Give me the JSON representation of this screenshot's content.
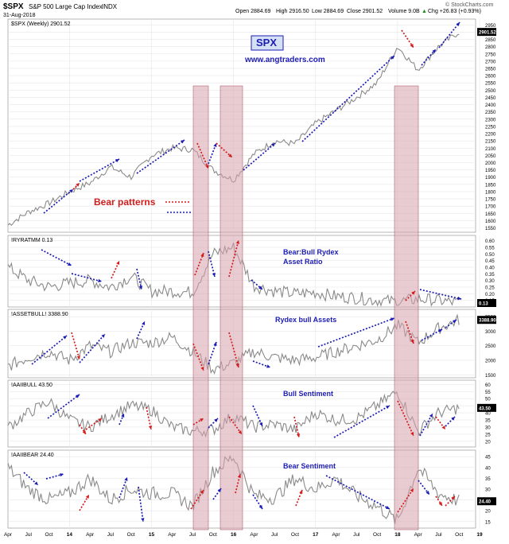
{
  "header": {
    "symbol": "$SPX",
    "name": "S&P 500 Large Cap Index",
    "exchange": "INDX",
    "date": "31-Aug-2018",
    "open": "Open 2884.69",
    "high": "High 2916.50",
    "low": "Low 2884.69",
    "close": "Close 2901.52",
    "volume": "Volume 9.0B",
    "chg": "Chg +26.83 (+0.93%)",
    "chg_arrow": "▲",
    "credit": "© StockCharts.com"
  },
  "panels": [
    {
      "legend": "$SPX (Weekly) 2901.52",
      "annotation": "SPX",
      "annotation2": "www.angtraders.com",
      "last": "2901.52",
      "ticks": [
        "2950",
        "2900",
        "2850",
        "2800",
        "2750",
        "2700",
        "2650",
        "2600",
        "2550",
        "2500",
        "2450",
        "2400",
        "2350",
        "2300",
        "2250",
        "2200",
        "2150",
        "2100",
        "2050",
        "2000",
        "1950",
        "1900",
        "1850",
        "1800",
        "1750",
        "1700",
        "1650",
        "1600",
        "1550"
      ]
    },
    {
      "legend": "!RYRATMM 0.13",
      "annotation": "Bear:Bull Rydex",
      "annotation2": "Asset Ratio",
      "last": "0.13",
      "ticks": [
        "0.60",
        "0.55",
        "0.50",
        "0.45",
        "0.40",
        "0.35",
        "0.30",
        "0.25",
        "0.20",
        "0.15"
      ]
    },
    {
      "legend": "!ASSETBULL! 3388.90",
      "annotation": "Rydex bull Assets",
      "last": "3388.90",
      "ticks": [
        "3500",
        "3000",
        "2500",
        "2000",
        "1500"
      ]
    },
    {
      "legend": "!AAIIBULL 43.50",
      "annotation": "Bull Sentiment",
      "last": "43.50",
      "ticks": [
        "60",
        "55",
        "50",
        "45",
        "40",
        "35",
        "30",
        "25",
        "20"
      ]
    },
    {
      "legend": "!AAIIBEAR 24.40",
      "annotation": "Bear Sentiment",
      "last": "24.40",
      "ticks": [
        "45",
        "40",
        "35",
        "30",
        "25",
        "20",
        "15"
      ]
    }
  ],
  "bear_patterns_label": "Bear patterns",
  "xaxis_ticks": [
    "Apr",
    "Jul",
    "Oct",
    "14",
    "Apr",
    "Jul",
    "Oct",
    "15",
    "Apr",
    "Jul",
    "Oct",
    "16",
    "Apr",
    "Jul",
    "Oct",
    "17",
    "Apr",
    "Jul",
    "Oct",
    "18",
    "Apr",
    "Jul",
    "Oct",
    "19"
  ],
  "colors": {
    "price": "#8a8a8a",
    "bull_arrow": "#1c1cb4",
    "bear_arrow": "#d21c1c",
    "highlight": "#d7a3ad",
    "annotation": "#1c1cb4",
    "bear_patterns": "#d21c1c"
  },
  "chart_data": {
    "type": "line",
    "title": "$SPX S&P 500 Large Cap Index INDX",
    "x": [
      "2013-04",
      "2013-07",
      "2013-10",
      "2014-01",
      "2014-04",
      "2014-07",
      "2014-10",
      "2015-01",
      "2015-04",
      "2015-07",
      "2015-10",
      "2016-01",
      "2016-04",
      "2016-07",
      "2016-10",
      "2017-01",
      "2017-04",
      "2017-07",
      "2017-10",
      "2018-01",
      "2018-04",
      "2018-07",
      "2018-10"
    ],
    "series": [
      {
        "name": "$SPX (Weekly)",
        "values": [
          1570,
          1660,
          1720,
          1800,
          1860,
          1970,
          1900,
          2050,
          2100,
          2090,
          1950,
          1880,
          2060,
          2150,
          2130,
          2270,
          2360,
          2450,
          2550,
          2800,
          2640,
          2800,
          2901.52
        ]
      },
      {
        "name": "!RYRATMM",
        "values": [
          0.4,
          0.3,
          0.25,
          0.28,
          0.3,
          0.25,
          0.33,
          0.22,
          0.22,
          0.21,
          0.5,
          0.55,
          0.26,
          0.22,
          0.2,
          0.21,
          0.18,
          0.17,
          0.15,
          0.14,
          0.16,
          0.15,
          0.13
        ]
      },
      {
        "name": "!ASSETBULL!",
        "values": [
          1800,
          2100,
          2300,
          2000,
          2500,
          2300,
          2600,
          2600,
          2800,
          2300,
          1700,
          1900,
          2300,
          2100,
          2000,
          2100,
          2300,
          2500,
          2700,
          3200,
          2600,
          3100,
          3388.9
        ]
      },
      {
        "name": "!AAIIBULL",
        "values": [
          30,
          40,
          48,
          35,
          30,
          38,
          45,
          42,
          30,
          27,
          28,
          38,
          30,
          32,
          28,
          40,
          35,
          36,
          45,
          55,
          27,
          40,
          43.5
        ]
      },
      {
        "name": "!AAIIBEAR",
        "values": [
          40,
          30,
          25,
          28,
          35,
          25,
          30,
          28,
          28,
          22,
          38,
          45,
          27,
          26,
          35,
          30,
          35,
          27,
          22,
          15,
          40,
          28,
          24.4
        ]
      }
    ]
  }
}
